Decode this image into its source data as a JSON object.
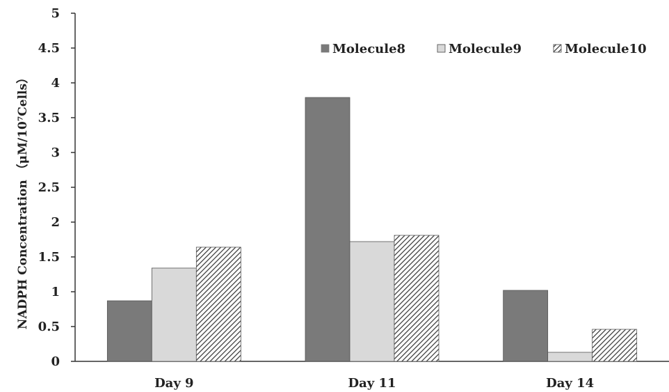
{
  "chart_data": {
    "type": "bar",
    "title": "",
    "xlabel": "",
    "ylabel": "NADPH Concentration （μM/10⁷Cells）",
    "ylim": [
      0,
      5
    ],
    "yticks": [
      "0",
      "0.5",
      "1",
      "1.5",
      "2",
      "2.5",
      "3",
      "3.5",
      "4",
      "4.5",
      "5"
    ],
    "categories": [
      "Day 9",
      "Day 11",
      "Day 14"
    ],
    "series": [
      {
        "name": "Molecule8",
        "values": [
          0.87,
          3.79,
          1.02
        ],
        "color": "#7a7a7a",
        "pattern": "solid"
      },
      {
        "name": "Molecule9",
        "values": [
          1.34,
          1.72,
          0.13
        ],
        "color": "#d9d9d9",
        "pattern": "solid"
      },
      {
        "name": "Molecule10",
        "values": [
          1.64,
          1.81,
          0.46
        ],
        "color": "#ffffff",
        "pattern": "diagonal-hatch"
      }
    ],
    "grid": false,
    "legend_position": "top-right"
  }
}
